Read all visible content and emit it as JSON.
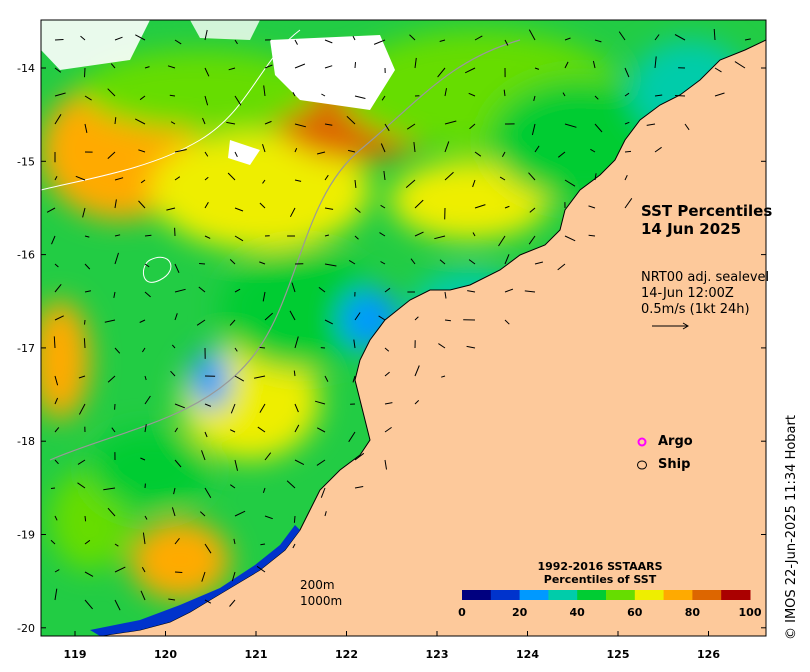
{
  "map": {
    "title_line1": "SST Percentiles",
    "title_line2": "14 Jun 2025",
    "model_line1": "NRT00 adj. sealevel",
    "model_line2": "14-Jun 12:00Z",
    "model_line3": "0.5m/s (1kt 24h)",
    "lon_ticks": [
      "119",
      "120",
      "121",
      "122",
      "123",
      "124",
      "125",
      "126"
    ],
    "lat_ticks": [
      "-14",
      "-15",
      "-16",
      "-17",
      "-18",
      "-19",
      "-20"
    ],
    "legend": {
      "argo": "Argo",
      "ship": "Ship",
      "argo_color": "#ff00ff"
    },
    "contours": {
      "depth1": "200m",
      "depth2": "1000m"
    },
    "colorbar": {
      "title_line1": "1992-2016 SSTAARS",
      "title_line2": "Percentiles of SST",
      "labels": [
        "0",
        "20",
        "40",
        "60",
        "80",
        "100"
      ],
      "colors": [
        "#00007f",
        "#0033cc",
        "#0099ff",
        "#00ccaa",
        "#00cc33",
        "#66dd00",
        "#eeee00",
        "#ffaa00",
        "#dd6600",
        "#aa0000"
      ]
    },
    "land_color": "#fdc99b",
    "credit": "© IMOS 22-Jun-2025 11:34 Hobart"
  }
}
